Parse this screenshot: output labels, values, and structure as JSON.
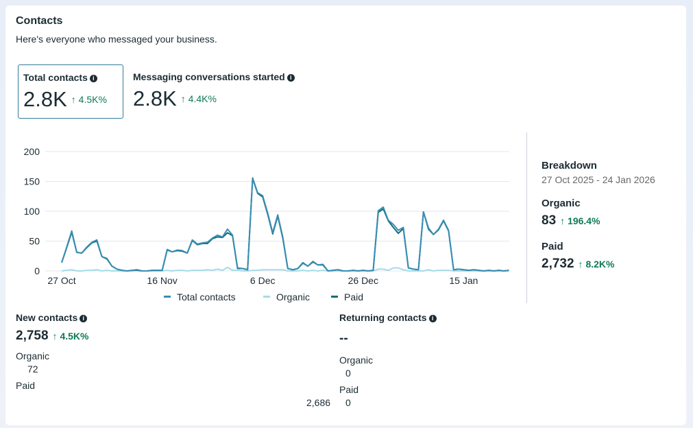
{
  "header": {
    "title": "Contacts",
    "subtitle": "Here's everyone who messaged your business."
  },
  "kpis": [
    {
      "label": "Total contacts",
      "value": "2.8K",
      "change": "4.5K%"
    },
    {
      "label": "Messaging conversations started",
      "value": "2.8K",
      "change": "4.4K%"
    }
  ],
  "breakdown": {
    "title": "Breakdown",
    "range": "27 Oct 2025 - 24 Jan 2026",
    "organic_label": "Organic",
    "organic_value": "83",
    "organic_change": "196.4%",
    "paid_label": "Paid",
    "paid_value": "2,732",
    "paid_change": "8.2K%"
  },
  "new_contacts": {
    "label": "New contacts",
    "value": "2,758",
    "change": "4.5K%",
    "organic_label": "Organic",
    "organic_value": "72",
    "paid_label": "Paid",
    "paid_value": "2,686"
  },
  "returning_contacts": {
    "label": "Returning contacts",
    "value": "--",
    "organic_label": "Organic",
    "organic_value": "0",
    "paid_label": "Paid",
    "paid_value": "0"
  },
  "colors": {
    "total": "#3a8db3",
    "organic": "#a5dbe8",
    "paid": "#0e6e78",
    "up": "#0f7a56"
  },
  "chart_data": {
    "type": "line",
    "ylim": [
      0,
      200
    ],
    "yticks": [
      "0",
      "50",
      "100",
      "150",
      "200"
    ],
    "xticks": [
      {
        "day": 0,
        "label": "27 Oct"
      },
      {
        "day": 20,
        "label": "16 Nov"
      },
      {
        "day": 40,
        "label": "6 Dec"
      },
      {
        "day": 60,
        "label": "26 Dec"
      },
      {
        "day": 80,
        "label": "15 Jan"
      }
    ],
    "series": [
      {
        "name": "Total contacts",
        "values": [
          14,
          40,
          67,
          31,
          30,
          40,
          48,
          52,
          24,
          21,
          8,
          3,
          1,
          0,
          1,
          2,
          0,
          0,
          1,
          1,
          1,
          36,
          32,
          35,
          34,
          30,
          52,
          45,
          47,
          48,
          55,
          60,
          57,
          70,
          60,
          5,
          4,
          2,
          156,
          131,
          126,
          97,
          64,
          94,
          57,
          4,
          2,
          4,
          14,
          8,
          16,
          10,
          11,
          0,
          1,
          2,
          0,
          0,
          1,
          0,
          1,
          0,
          1,
          101,
          107,
          85,
          78,
          68,
          73,
          5,
          3,
          2,
          99,
          72,
          61,
          70,
          85,
          68,
          2,
          3,
          2,
          1,
          2,
          1,
          0,
          1,
          0,
          1,
          0,
          1
        ]
      },
      {
        "name": "Organic",
        "values": [
          0,
          1,
          2,
          0,
          0,
          1,
          1,
          2,
          0,
          1,
          0,
          0,
          0,
          0,
          0,
          1,
          0,
          0,
          0,
          0,
          0,
          1,
          0,
          1,
          1,
          0,
          1,
          1,
          1,
          2,
          1,
          3,
          1,
          6,
          1,
          1,
          0,
          0,
          1,
          1,
          2,
          2,
          2,
          2,
          2,
          0,
          0,
          0,
          1,
          0,
          1,
          0,
          1,
          0,
          0,
          0,
          0,
          0,
          0,
          0,
          0,
          0,
          0,
          3,
          3,
          1,
          5,
          5,
          2,
          0,
          0,
          0,
          0,
          2,
          0,
          1,
          1,
          1,
          0,
          0,
          0,
          0,
          0,
          0,
          0,
          0,
          0,
          0,
          0,
          0
        ]
      },
      {
        "name": "Paid",
        "values": [
          14,
          39,
          65,
          31,
          30,
          39,
          47,
          50,
          24,
          20,
          8,
          3,
          1,
          0,
          1,
          1,
          0,
          0,
          1,
          1,
          1,
          35,
          32,
          34,
          33,
          30,
          51,
          44,
          46,
          46,
          54,
          57,
          56,
          64,
          59,
          4,
          4,
          2,
          155,
          130,
          124,
          95,
          62,
          92,
          55,
          4,
          2,
          4,
          13,
          8,
          15,
          10,
          10,
          0,
          1,
          2,
          0,
          0,
          1,
          0,
          1,
          0,
          1,
          98,
          104,
          84,
          73,
          63,
          71,
          5,
          3,
          2,
          99,
          70,
          61,
          69,
          84,
          67,
          2,
          3,
          2,
          1,
          2,
          1,
          0,
          1,
          0,
          1,
          0,
          1
        ]
      }
    ],
    "legend": "bottom"
  }
}
